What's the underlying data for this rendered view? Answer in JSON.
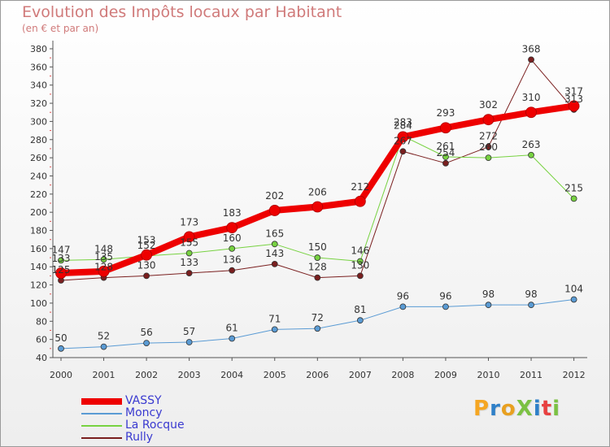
{
  "header": {
    "title": "Evolution des Impôts locaux par Habitant",
    "subtitle": "(en € et par an)"
  },
  "logo": {
    "text": "ProXiti",
    "colors": [
      "#f5a623",
      "#2f80c8",
      "#e8a020",
      "#7bc143",
      "#2f80c8",
      "#e84040",
      "#7bc143"
    ]
  },
  "chart_data": {
    "type": "line",
    "title": "Evolution des Impôts locaux par Habitant",
    "subtitle": "(en € et par an)",
    "xlabel": "",
    "ylabel": "",
    "ylim": [
      40,
      380
    ],
    "ytick_step": 20,
    "grid": false,
    "legend_position": "bottom-left",
    "categories": [
      "2000",
      "2001",
      "2002",
      "2003",
      "2004",
      "2005",
      "2006",
      "2007",
      "2008",
      "2009",
      "2010",
      "2011",
      "2012"
    ],
    "series": [
      {
        "name": "Rully",
        "color": "#7a1f1f",
        "width": 1,
        "values": [
          125,
          128,
          130,
          133,
          136,
          143,
          128,
          130,
          267,
          254,
          272,
          368,
          313
        ]
      },
      {
        "name": "La Rocque",
        "color": "#77d241",
        "width": 1,
        "values": [
          147,
          148,
          152,
          155,
          160,
          165,
          150,
          146,
          284,
          261,
          260,
          263,
          215
        ]
      },
      {
        "name": "Moncy",
        "color": "#5a9bd4",
        "width": 1,
        "values": [
          50,
          52,
          56,
          57,
          61,
          71,
          72,
          81,
          96,
          96,
          98,
          98,
          104
        ]
      },
      {
        "name": "VASSY",
        "color": "#ee0000",
        "width": 8,
        "values": [
          133,
          135,
          153,
          173,
          183,
          202,
          206,
          212,
          283,
          293,
          302,
          310,
          317
        ]
      }
    ],
    "legend_order": [
      "VASSY",
      "Moncy",
      "La Rocque",
      "Rully"
    ]
  }
}
